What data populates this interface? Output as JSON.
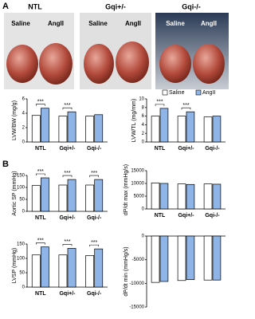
{
  "panel_a": {
    "label": "A",
    "groups": [
      {
        "title": "NTL",
        "saline": "Saline",
        "angii": "AngII"
      },
      {
        "title": "Gqi+/-",
        "saline": "Saline",
        "angii": "AngII"
      },
      {
        "title": "Gqi-/-",
        "saline": "Saline",
        "angii": "AngII"
      }
    ]
  },
  "panel_b_label": "B",
  "chart_data": [
    {
      "type": "bar",
      "y_label": "LVW/BW (mg/g)",
      "categories": [
        "NTL",
        "Gqi+/-",
        "Gqi-/-"
      ],
      "series": [
        {
          "name": "Saline",
          "color": "#ffffff",
          "values": [
            3.7,
            3.6,
            3.6
          ]
        },
        {
          "name": "AngII",
          "color": "#8fb4e8",
          "values": [
            4.7,
            4.2,
            3.8
          ]
        }
      ],
      "ylim": [
        0,
        6
      ],
      "yticks": [
        0,
        2,
        4,
        6
      ],
      "annotations": [
        "***",
        "***",
        null
      ]
    },
    {
      "type": "bar",
      "y_label": "LVW/TL (mg/mm)",
      "categories": [
        "NTL",
        "Gqi+/-",
        "Gqi-/-"
      ],
      "series": [
        {
          "name": "Saline",
          "color": "#ffffff",
          "values": [
            6.0,
            6.0,
            5.8
          ]
        },
        {
          "name": "AngII",
          "color": "#8fb4e8",
          "values": [
            7.8,
            7.0,
            6.0
          ]
        }
      ],
      "ylim": [
        0,
        10
      ],
      "yticks": [
        0,
        2,
        4,
        6,
        8,
        10
      ],
      "annotations": [
        "***",
        "***",
        null
      ],
      "legend": "top"
    },
    {
      "type": "bar",
      "y_label": "Aortic SP (mmHg)",
      "categories": [
        "NTL",
        "Gqi+/-",
        "Gqi-/-"
      ],
      "series": [
        {
          "name": "Saline",
          "color": "#ffffff",
          "values": [
            108,
            110,
            110
          ]
        },
        {
          "name": "AngII",
          "color": "#8fb4e8",
          "values": [
            140,
            133,
            133
          ]
        }
      ],
      "ylim": [
        0,
        150
      ],
      "yticks": [
        0,
        50,
        100,
        150
      ],
      "annotations": [
        "***",
        "***",
        "***"
      ]
    },
    {
      "type": "bar",
      "y_label": "dP/dt max (mmHg/s)",
      "categories": [
        "NTL",
        "Gqi+/-",
        "Gqi-/-"
      ],
      "series": [
        {
          "name": "Saline",
          "color": "#ffffff",
          "values": [
            10200,
            9800,
            9800
          ]
        },
        {
          "name": "AngII",
          "color": "#8fb4e8",
          "values": [
            10000,
            9600,
            9700
          ]
        }
      ],
      "ylim": [
        0,
        15000
      ],
      "yticks": [
        0,
        5000,
        10000,
        15000
      ]
    },
    {
      "type": "bar",
      "y_label": "LVSP (mmHg)",
      "categories": [
        "NTL",
        "Gqi+/-",
        "Gqi-/-"
      ],
      "series": [
        {
          "name": "Saline",
          "color": "#ffffff",
          "values": [
            112,
            112,
            110
          ]
        },
        {
          "name": "AngII",
          "color": "#8fb4e8",
          "values": [
            140,
            135,
            133
          ]
        }
      ],
      "ylim": [
        0,
        150
      ],
      "yticks": [
        0,
        50,
        100,
        150
      ],
      "annotations": [
        "***",
        "***",
        "***"
      ]
    },
    {
      "type": "bar",
      "y_label": "dP/dt min (mmHg/s)",
      "categories": [
        null,
        null,
        null
      ],
      "series": [
        {
          "name": "Saline",
          "color": "#ffffff",
          "values": [
            -9800,
            -9400,
            -9300
          ]
        },
        {
          "name": "AngII",
          "color": "#8fb4e8",
          "values": [
            -9600,
            -9200,
            -9300
          ]
        }
      ],
      "ylim": [
        -15000,
        0
      ],
      "yticks": [
        -15000,
        -10000,
        -5000,
        0
      ]
    }
  ]
}
